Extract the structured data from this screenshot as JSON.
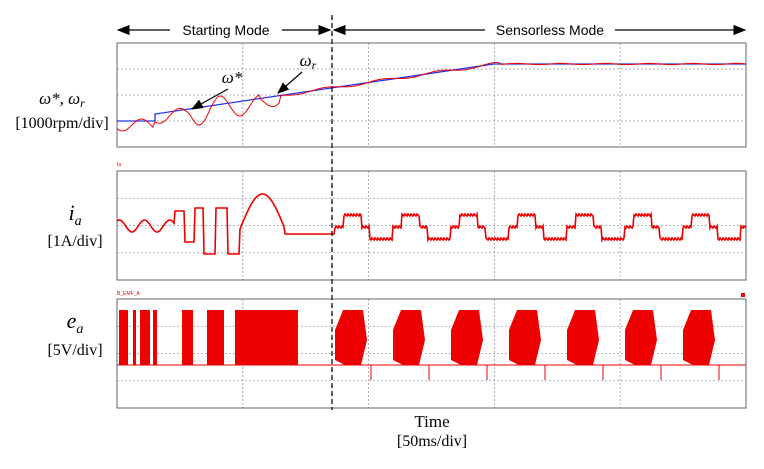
{
  "header": {
    "left_mode": "Starting Mode",
    "right_mode": "Sensorless Mode"
  },
  "panels": [
    {
      "label_main": "ω*, ω",
      "label_sub": "r",
      "scale": "[1000rpm/div]"
    },
    {
      "label_main": "i",
      "label_sub": "a",
      "scale": "[1A/div]",
      "tag": "Ia"
    },
    {
      "label_main": "e",
      "label_sub": "a",
      "scale": "[5V/div]",
      "tag": "B_EMF_A"
    }
  ],
  "annotations": [
    {
      "main": "ω*"
    },
    {
      "main": "ω",
      "sub": "r"
    }
  ],
  "x_axis": {
    "title": "Time",
    "scale": "[50ms/div]"
  }
}
